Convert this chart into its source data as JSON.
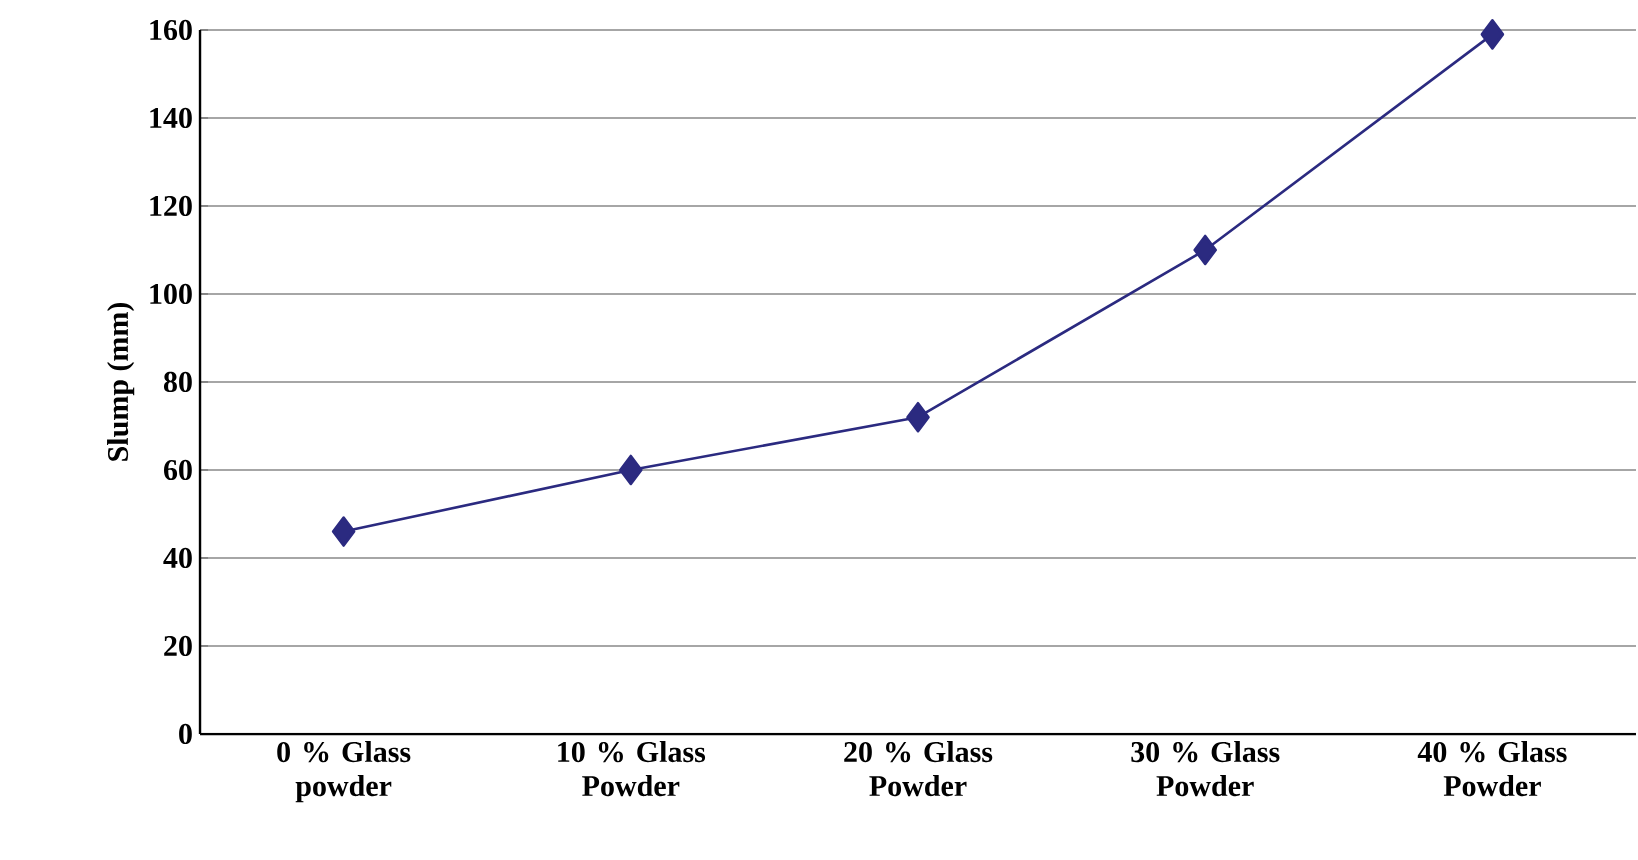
{
  "chart_data": {
    "type": "line",
    "ylabel": "Slump (mm)",
    "categories": [
      "0 % Glass powder",
      "10 % Glass Powder",
      "20 % Glass Powder",
      "30 % Glass Powder",
      "40 % Glass Powder"
    ],
    "series": [
      {
        "color": "#2b2a80",
        "values": [
          46,
          60,
          72,
          110,
          159
        ]
      }
    ],
    "ylim": [
      0,
      160
    ],
    "yticks": [
      0,
      20,
      40,
      60,
      80,
      100,
      120,
      140,
      160
    ],
    "grid": "y",
    "marker": "diamond",
    "line_style": "solid"
  }
}
